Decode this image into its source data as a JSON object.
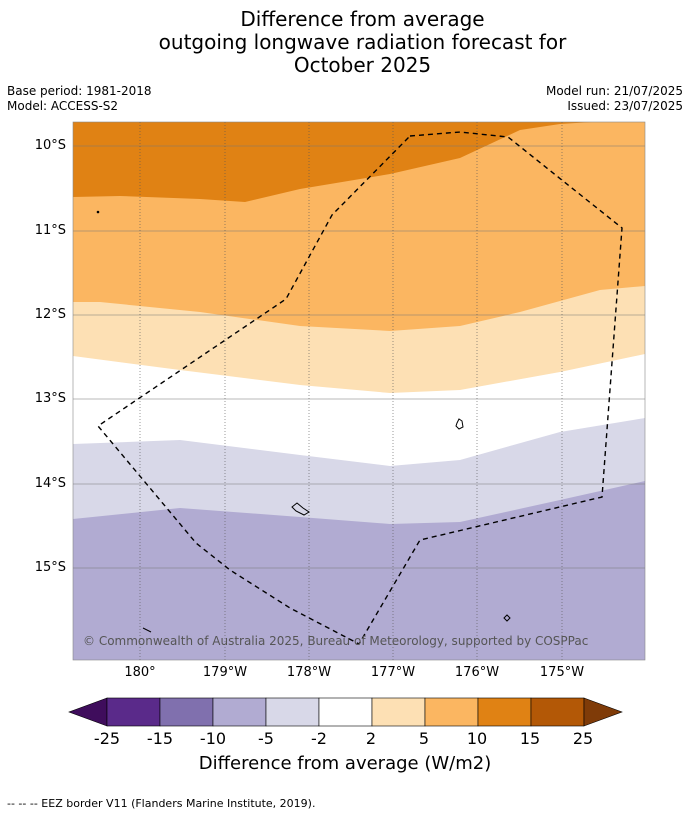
{
  "title_lines": [
    "Difference from average",
    "outgoing longwave radiation forecast for",
    "October 2025"
  ],
  "meta": {
    "base_period": "Base period: 1981-2018",
    "model": "Model: ACCESS-S2",
    "model_run": "Model run: 21/07/2025",
    "issued": "Issued: 23/07/2025"
  },
  "map": {
    "lat_labels": [
      "10°S",
      "11°S",
      "12°S",
      "13°S",
      "14°S",
      "15°S"
    ],
    "lon_labels": [
      "180°",
      "179°W",
      "178°W",
      "177°W",
      "176°W",
      "175°W"
    ],
    "copyright": "© Commonwealth of Australia 2025, Bureau of Meteorology, supported by COSPPac",
    "gridlines": true,
    "eez_border": "dashed"
  },
  "colorbar": {
    "ticks": [
      "-25",
      "-15",
      "-10",
      "-5",
      "-2",
      "2",
      "5",
      "10",
      "15",
      "25"
    ],
    "colors": [
      "#3f0d5c",
      "#5a2a8a",
      "#8070ae",
      "#b1abd2",
      "#d8d8e8",
      "#ffffff",
      "#fde0b4",
      "#fbb661",
      "#e08214",
      "#b35806",
      "#7f3b08"
    ],
    "label": "Difference from average (W/m2)"
  },
  "footer": "--  --  -- EEZ border V11 (Flanders Marine Institute, 2019)."
}
